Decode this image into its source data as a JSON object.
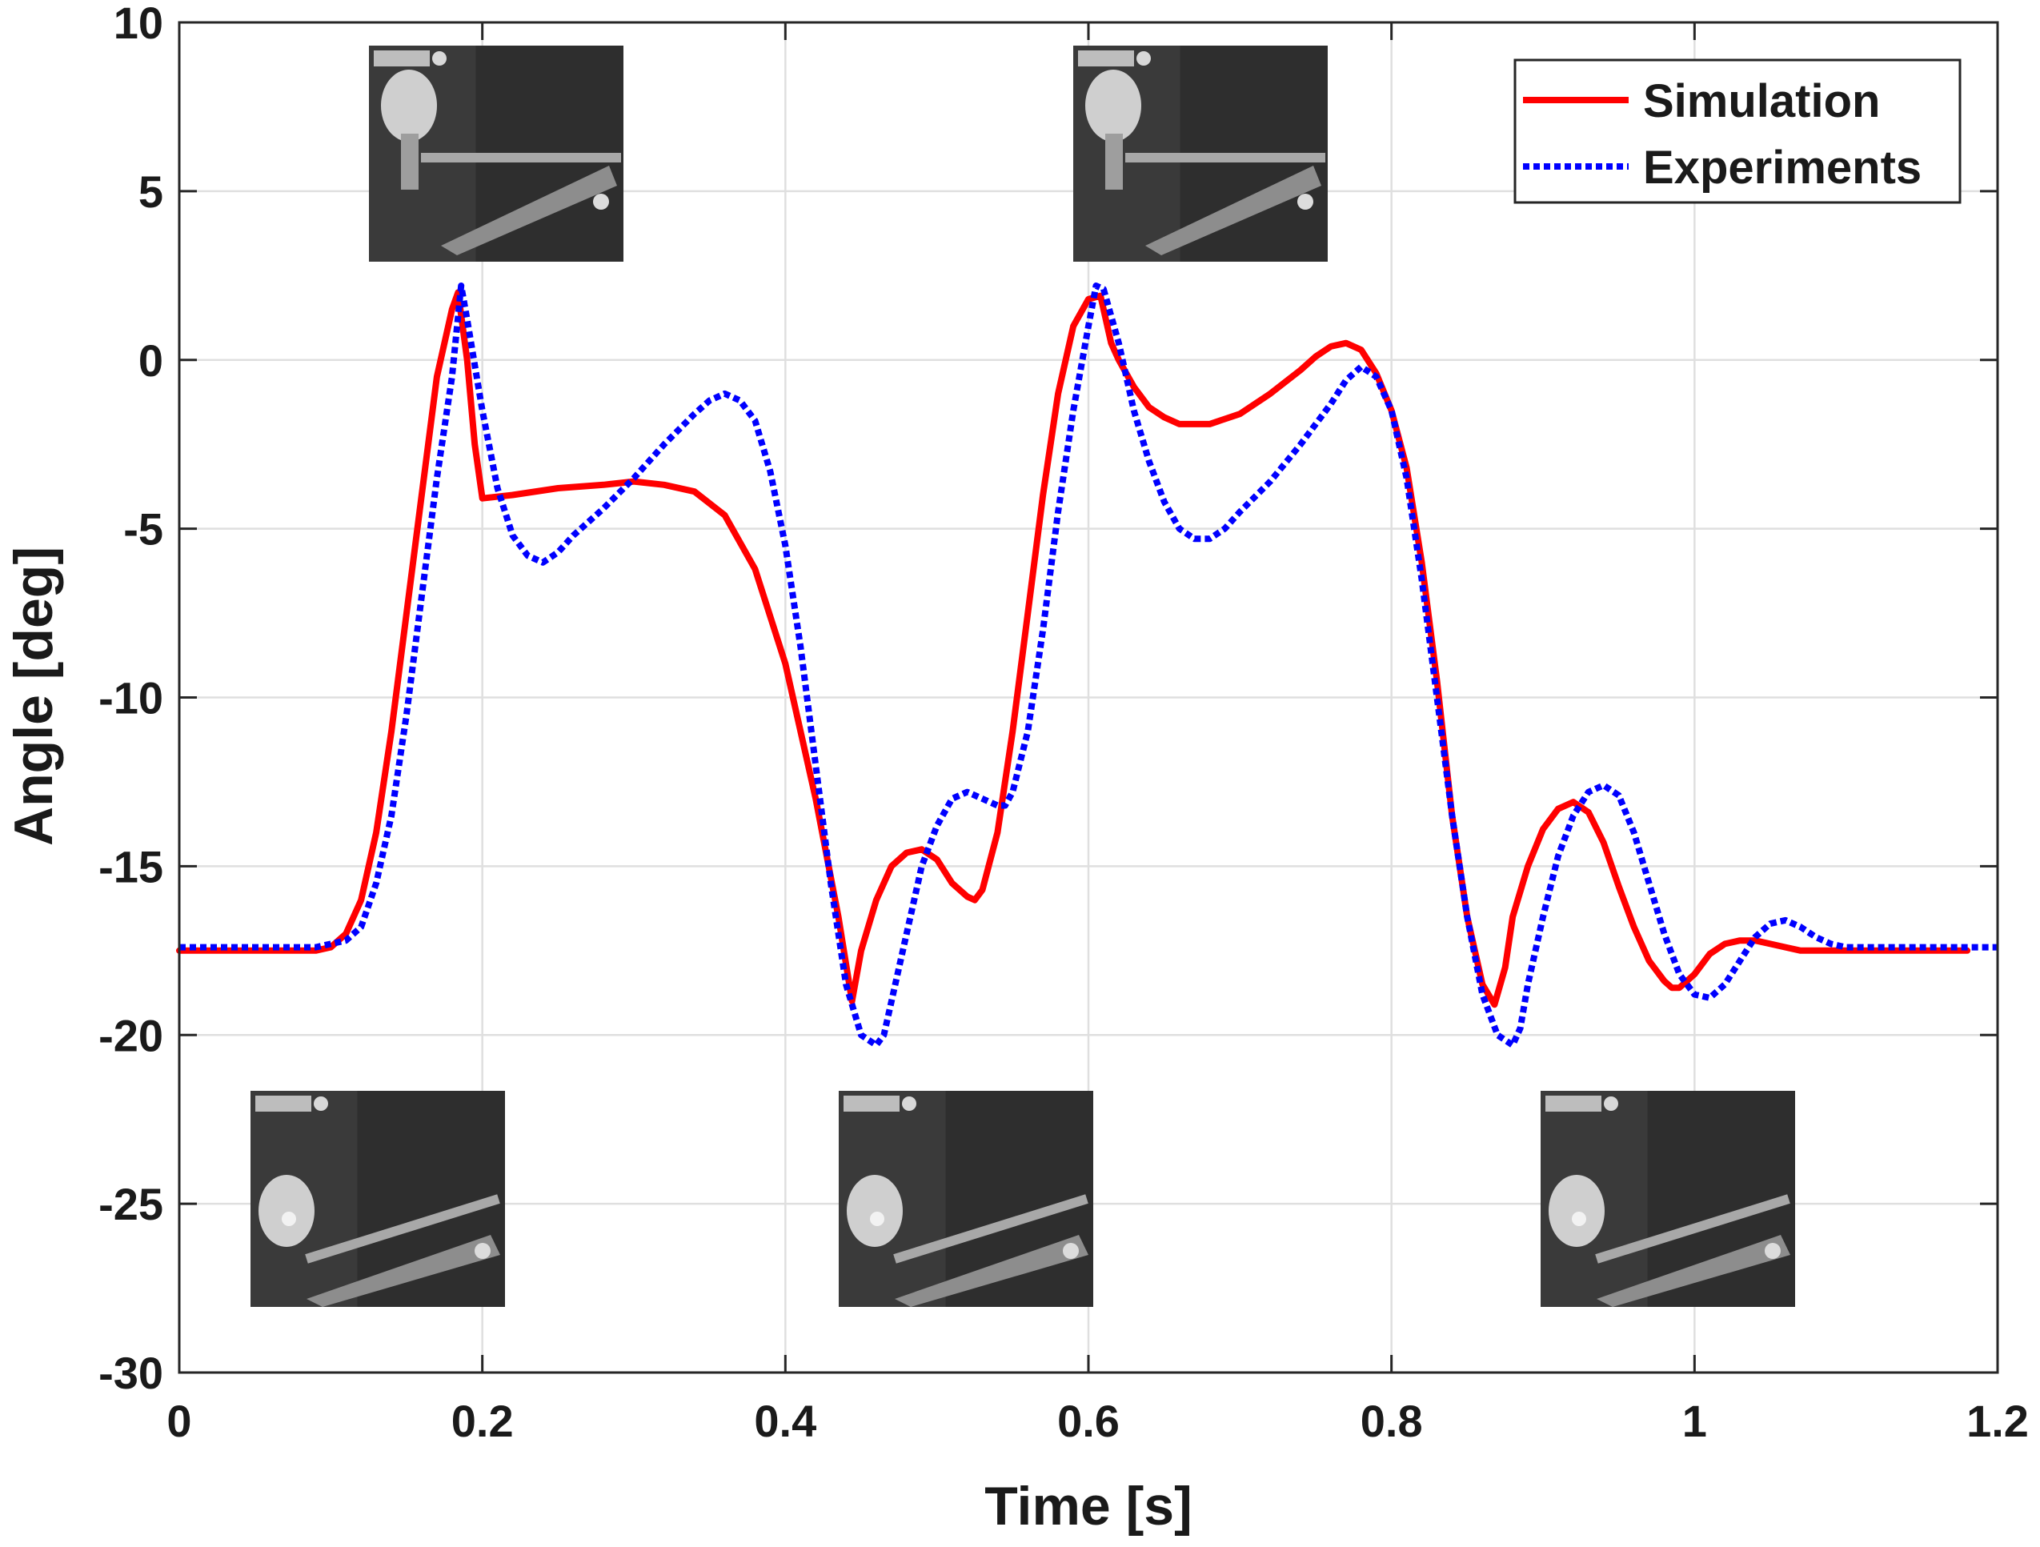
{
  "chart_data": {
    "type": "line",
    "title": "",
    "xlabel": "Time [s]",
    "ylabel": "Angle [deg]",
    "xlim": [
      0,
      1.2
    ],
    "ylim": [
      -30,
      10
    ],
    "xticks": [
      0,
      0.2,
      0.4,
      0.6,
      0.8,
      1,
      1.2
    ],
    "xtick_labels": [
      "0",
      "0.2",
      "0.4",
      "0.6",
      "0.8",
      "1",
      "1.2"
    ],
    "yticks": [
      10,
      5,
      0,
      -5,
      -10,
      -15,
      -20,
      -25,
      -30
    ],
    "ytick_labels": [
      "10",
      "5",
      "0",
      "-5",
      "-10",
      "-15",
      "-20",
      "-25",
      "-30"
    ],
    "grid": true,
    "legend_position": "top-right",
    "series": [
      {
        "name": "Simulation",
        "color": "#ff0000",
        "style": "solid",
        "x": [
          0,
          0.09,
          0.1,
          0.11,
          0.12,
          0.13,
          0.14,
          0.15,
          0.16,
          0.17,
          0.18,
          0.184,
          0.19,
          0.195,
          0.2,
          0.22,
          0.25,
          0.28,
          0.3,
          0.32,
          0.34,
          0.36,
          0.38,
          0.4,
          0.42,
          0.435,
          0.444,
          0.45,
          0.46,
          0.47,
          0.48,
          0.49,
          0.5,
          0.51,
          0.52,
          0.525,
          0.53,
          0.54,
          0.55,
          0.56,
          0.57,
          0.58,
          0.59,
          0.6,
          0.608,
          0.615,
          0.62,
          0.63,
          0.64,
          0.65,
          0.66,
          0.67,
          0.68,
          0.7,
          0.72,
          0.74,
          0.75,
          0.76,
          0.77,
          0.78,
          0.79,
          0.8,
          0.81,
          0.82,
          0.83,
          0.84,
          0.85,
          0.86,
          0.868,
          0.875,
          0.88,
          0.89,
          0.9,
          0.91,
          0.92,
          0.93,
          0.94,
          0.95,
          0.96,
          0.97,
          0.98,
          0.985,
          0.99,
          1.0,
          1.01,
          1.02,
          1.03,
          1.04,
          1.05,
          1.06,
          1.07,
          1.08,
          1.1,
          1.12,
          1.15,
          1.18
        ],
        "y": [
          -17.5,
          -17.5,
          -17.4,
          -17.0,
          -16.0,
          -14.0,
          -11.0,
          -7.5,
          -4.0,
          -0.5,
          1.5,
          2.0,
          0.0,
          -2.5,
          -4.1,
          -4.0,
          -3.8,
          -3.7,
          -3.6,
          -3.7,
          -3.9,
          -4.6,
          -6.2,
          -9.0,
          -13.0,
          -16.5,
          -19.0,
          -17.5,
          -16.0,
          -15.0,
          -14.6,
          -14.5,
          -14.8,
          -15.5,
          -15.9,
          -16.0,
          -15.7,
          -14.0,
          -11.0,
          -7.5,
          -4.0,
          -1.0,
          1.0,
          1.8,
          1.9,
          0.5,
          0.0,
          -0.8,
          -1.4,
          -1.7,
          -1.9,
          -1.9,
          -1.9,
          -1.6,
          -1.0,
          -0.3,
          0.1,
          0.4,
          0.5,
          0.3,
          -0.4,
          -1.5,
          -3.2,
          -6.0,
          -9.5,
          -13.5,
          -16.5,
          -18.5,
          -19.1,
          -18.0,
          -16.5,
          -15.0,
          -13.9,
          -13.3,
          -13.1,
          -13.4,
          -14.3,
          -15.6,
          -16.8,
          -17.8,
          -18.4,
          -18.6,
          -18.6,
          -18.2,
          -17.6,
          -17.3,
          -17.2,
          -17.2,
          -17.3,
          -17.4,
          -17.5,
          -17.5,
          -17.5,
          -17.5,
          -17.5,
          -17.5
        ]
      },
      {
        "name": "Experiments",
        "color": "#0000ff",
        "style": "dotted",
        "x": [
          0,
          0.09,
          0.1,
          0.11,
          0.12,
          0.13,
          0.14,
          0.15,
          0.16,
          0.17,
          0.18,
          0.186,
          0.19,
          0.2,
          0.21,
          0.22,
          0.23,
          0.24,
          0.25,
          0.26,
          0.28,
          0.3,
          0.32,
          0.34,
          0.35,
          0.36,
          0.37,
          0.38,
          0.39,
          0.4,
          0.41,
          0.42,
          0.43,
          0.44,
          0.45,
          0.46,
          0.465,
          0.47,
          0.48,
          0.49,
          0.5,
          0.51,
          0.52,
          0.53,
          0.54,
          0.545,
          0.55,
          0.56,
          0.57,
          0.58,
          0.59,
          0.6,
          0.605,
          0.61,
          0.62,
          0.63,
          0.64,
          0.65,
          0.66,
          0.67,
          0.68,
          0.69,
          0.7,
          0.72,
          0.74,
          0.76,
          0.77,
          0.78,
          0.79,
          0.8,
          0.81,
          0.82,
          0.83,
          0.84,
          0.85,
          0.86,
          0.87,
          0.88,
          0.885,
          0.89,
          0.9,
          0.91,
          0.92,
          0.93,
          0.94,
          0.95,
          0.96,
          0.97,
          0.98,
          0.99,
          1.0,
          1.01,
          1.02,
          1.03,
          1.04,
          1.05,
          1.06,
          1.07,
          1.08,
          1.09,
          1.1,
          1.15,
          1.2
        ],
        "y": [
          -17.4,
          -17.4,
          -17.3,
          -17.2,
          -16.8,
          -15.5,
          -13.5,
          -10.5,
          -7.0,
          -3.5,
          -0.5,
          2.2,
          1.2,
          -1.5,
          -3.8,
          -5.2,
          -5.8,
          -6.0,
          -5.7,
          -5.2,
          -4.4,
          -3.5,
          -2.5,
          -1.6,
          -1.2,
          -1.0,
          -1.2,
          -1.8,
          -3.3,
          -5.5,
          -8.5,
          -12.0,
          -15.5,
          -18.5,
          -20.0,
          -20.3,
          -20.0,
          -19.0,
          -17.0,
          -15.0,
          -13.8,
          -13.0,
          -12.8,
          -13.0,
          -13.2,
          -13.2,
          -12.8,
          -11.0,
          -8.0,
          -4.5,
          -1.5,
          1.0,
          2.2,
          2.1,
          0.5,
          -1.5,
          -3.0,
          -4.2,
          -5.0,
          -5.3,
          -5.3,
          -5.0,
          -4.5,
          -3.6,
          -2.5,
          -1.3,
          -0.6,
          -0.2,
          -0.5,
          -1.5,
          -3.5,
          -6.5,
          -10.0,
          -13.5,
          -16.5,
          -18.8,
          -20.0,
          -20.3,
          -19.8,
          -18.5,
          -16.5,
          -14.7,
          -13.5,
          -12.8,
          -12.6,
          -12.9,
          -14.0,
          -15.5,
          -17.0,
          -18.2,
          -18.8,
          -18.9,
          -18.5,
          -17.8,
          -17.1,
          -16.7,
          -16.6,
          -16.8,
          -17.1,
          -17.3,
          -17.4,
          -17.4,
          -17.4
        ]
      }
    ],
    "snapshots": [
      {
        "name": "snapshot-peak-1"
      },
      {
        "name": "snapshot-peak-2"
      },
      {
        "name": "snapshot-rest-1"
      },
      {
        "name": "snapshot-rest-2"
      },
      {
        "name": "snapshot-rest-3"
      }
    ]
  }
}
